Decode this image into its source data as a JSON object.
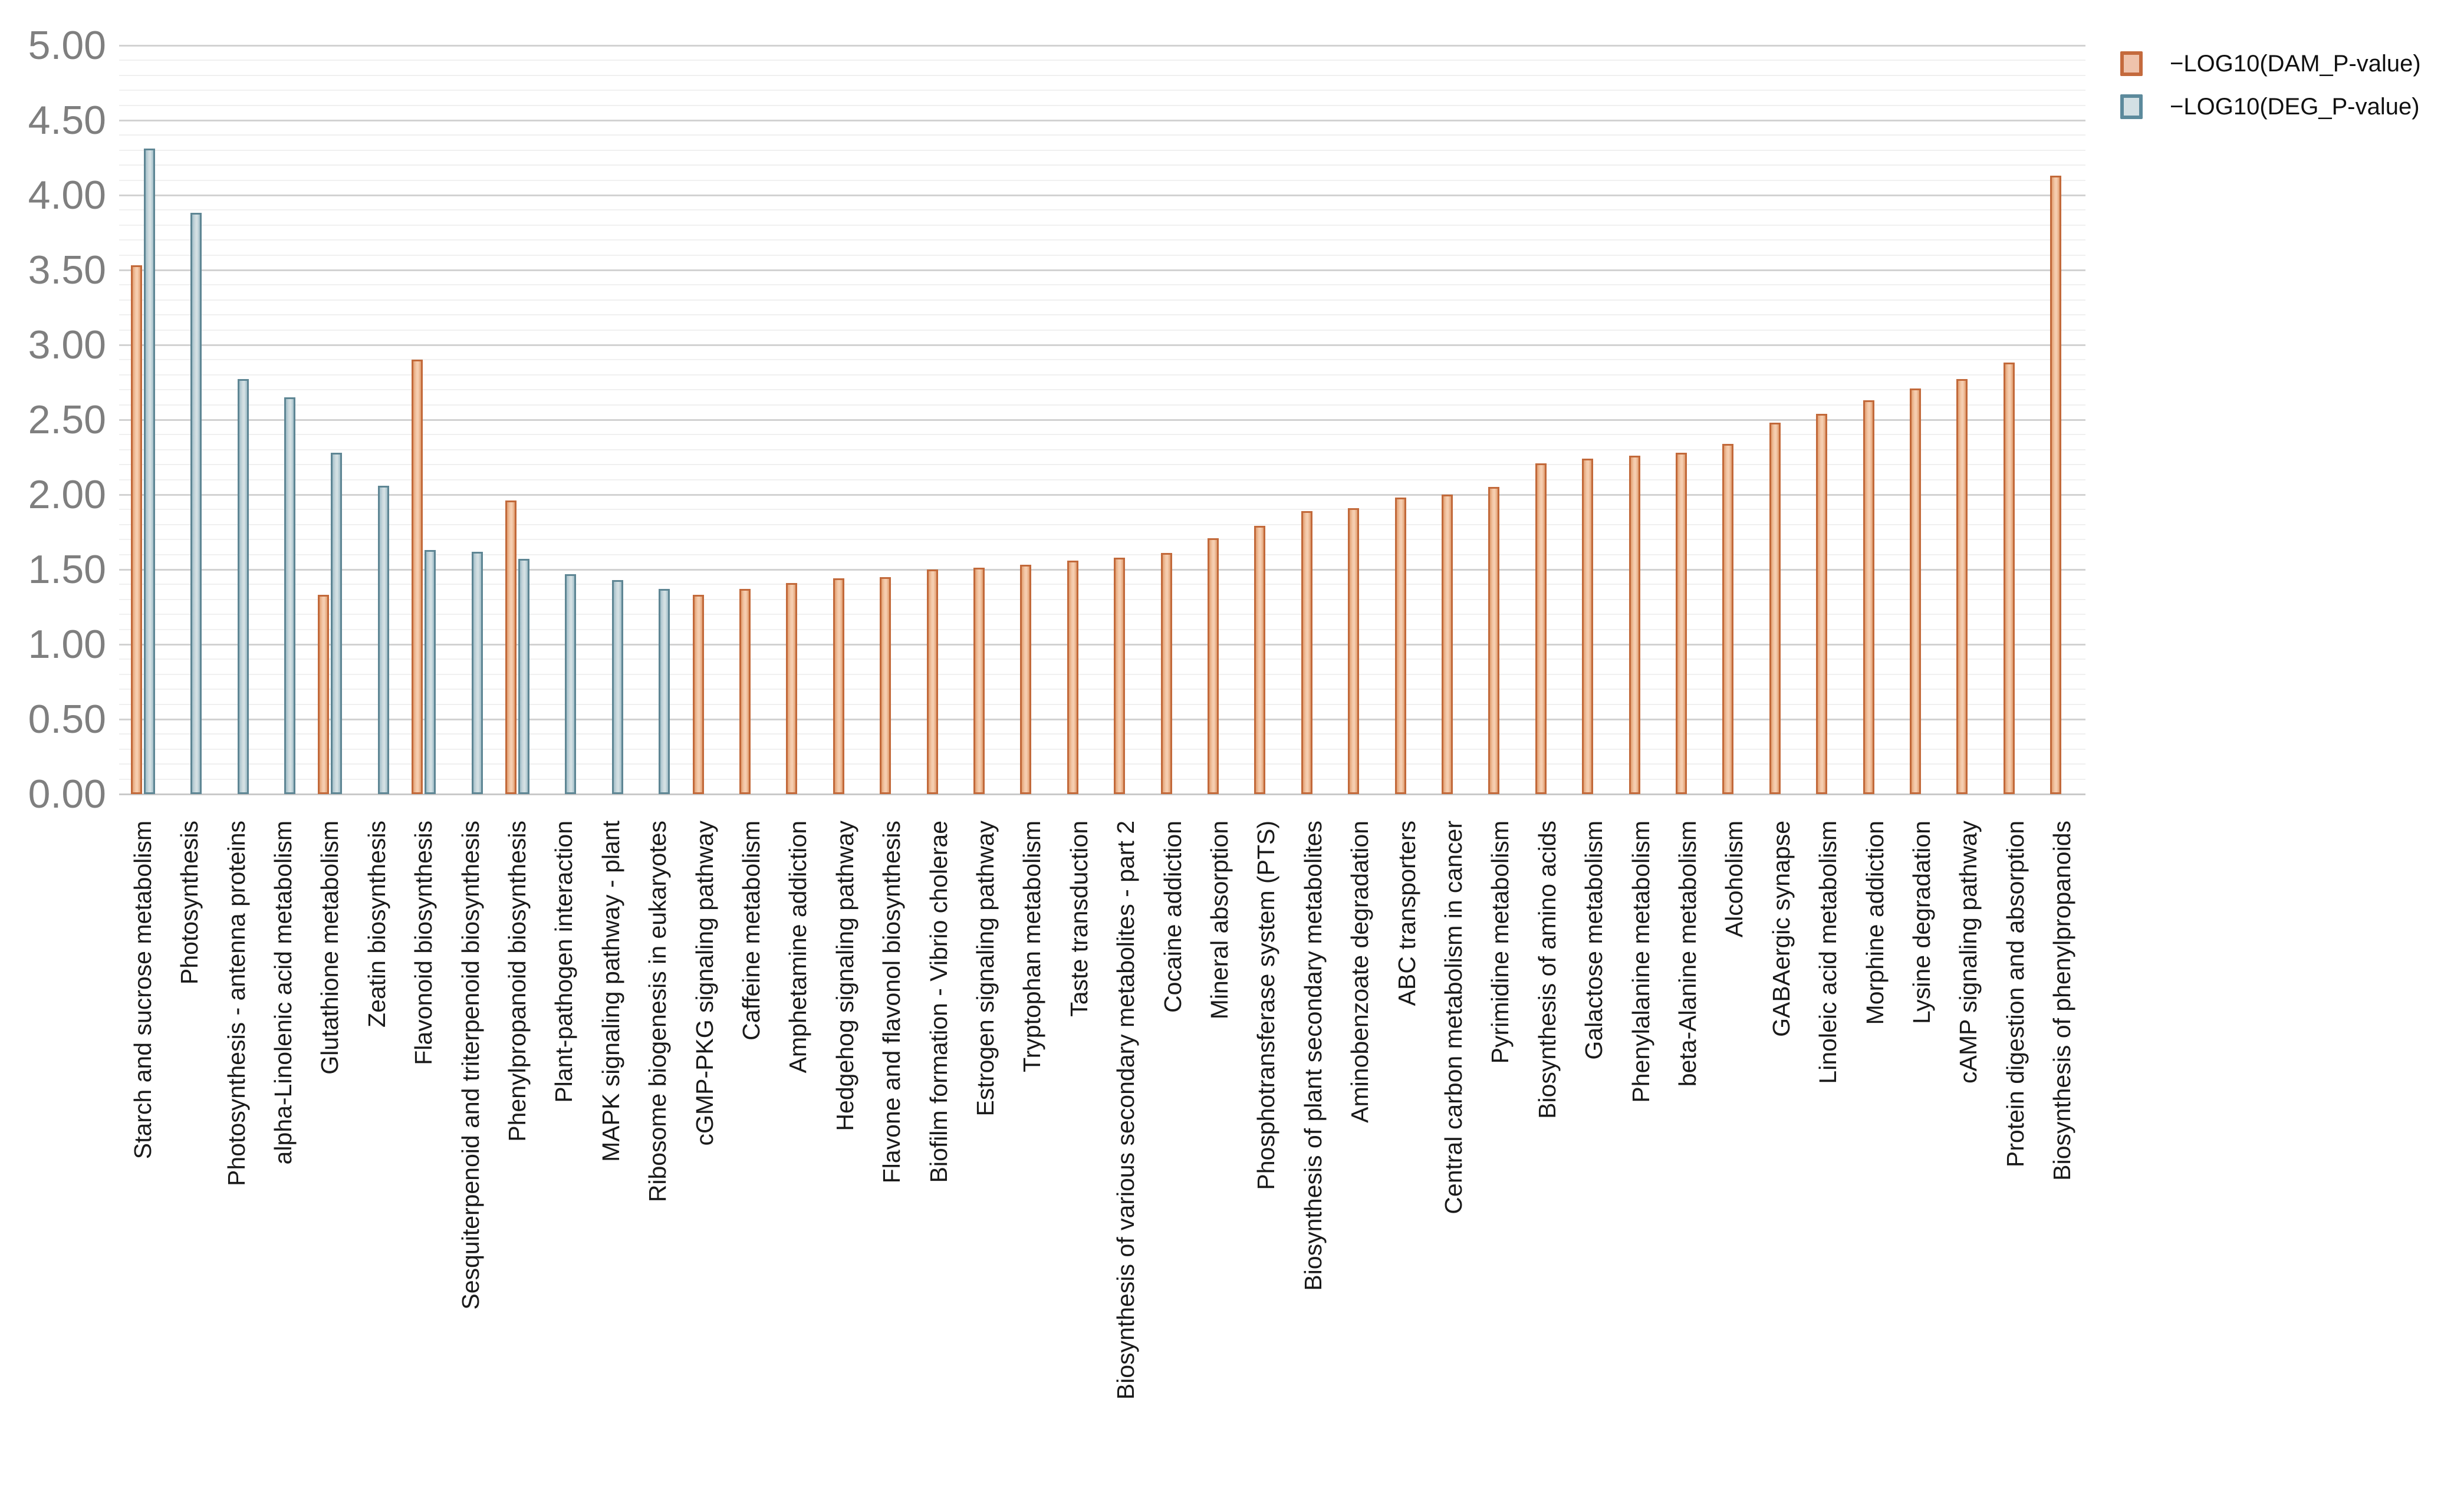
{
  "chart_data": {
    "type": "bar",
    "title": "",
    "xlabel": "",
    "ylabel": "",
    "grid": "on",
    "legend_position": "top-right",
    "categories": [
      "Starch and sucrose metabolism",
      "Photosynthesis",
      "Photosynthesis - antenna proteins",
      "alpha-Linolenic acid metabolism",
      "Glutathione metabolism",
      "Zeatin biosynthesis",
      "Flavonoid biosynthesis",
      "Sesquiterpenoid and triterpenoid biosynthesis",
      "Phenylpropanoid biosynthesis",
      "Plant-pathogen interaction",
      "MAPK signaling pathway - plant",
      "Ribosome biogenesis in eukaryotes",
      "cGMP-PKG signaling pathway",
      "Caffeine metabolism",
      "Amphetamine addiction",
      "Hedgehog signaling pathway",
      "Flavone and flavonol biosynthesis",
      "Biofilm formation - Vibrio cholerae",
      "Estrogen signaling pathway",
      "Tryptophan metabolism",
      "Taste transduction",
      "Biosynthesis of various secondary metabolites - part 2",
      "Cocaine addiction",
      "Mineral absorption",
      "Phosphotransferase system (PTS)",
      "Biosynthesis of plant secondary metabolites",
      "Aminobenzoate degradation",
      "ABC transporters",
      "Central carbon metabolism in cancer",
      "Pyrimidine metabolism",
      "Biosynthesis of amino acids",
      "Galactose metabolism",
      "Phenylalanine metabolism",
      "beta-Alanine metabolism",
      "Alcoholism",
      "GABAergic synapse",
      "Linoleic acid metabolism",
      "Morphine addiction",
      "Lysine degradation",
      "cAMP signaling pathway",
      "Protein digestion and absorption",
      "Biosynthesis of phenylpropanoids"
    ],
    "series": [
      {
        "name": "−LOG10(DAM_P-value)",
        "fill": "#F2C5A6",
        "border": "#C2693A",
        "values": [
          3.53,
          null,
          null,
          null,
          1.33,
          null,
          2.9,
          null,
          1.96,
          null,
          null,
          null,
          1.33,
          1.37,
          1.41,
          1.44,
          1.45,
          1.5,
          1.51,
          1.53,
          1.56,
          1.58,
          1.61,
          1.71,
          1.79,
          1.89,
          1.91,
          1.98,
          2.0,
          2.05,
          2.21,
          2.24,
          2.26,
          2.28,
          2.34,
          2.48,
          2.54,
          2.63,
          2.71,
          2.77,
          2.88,
          4.13
        ]
      },
      {
        "name": "−LOG10(DEG_P-value)",
        "fill": "#CCDADE",
        "border": "#5E8694",
        "values": [
          4.31,
          3.88,
          2.77,
          2.65,
          2.28,
          2.06,
          1.63,
          1.62,
          1.57,
          1.47,
          1.43,
          1.37,
          null,
          null,
          null,
          null,
          null,
          null,
          null,
          null,
          null,
          null,
          null,
          null,
          null,
          null,
          null,
          null,
          null,
          null,
          null,
          null,
          null,
          null,
          null,
          null,
          null,
          null,
          null,
          null,
          null,
          null
        ]
      }
    ],
    "y_axis": {
      "min": 0,
      "max": 5,
      "major_step": 0.5,
      "minor_step": 0.1,
      "tick_labels": [
        "0.00",
        "0.50",
        "1.00",
        "1.50",
        "2.00",
        "2.50",
        "3.00",
        "3.50",
        "4.00",
        "4.50",
        "5.00"
      ]
    }
  },
  "legend": {
    "items": [
      {
        "label": "−LOG10(DAM_P-value)",
        "series": "DAM",
        "fill": "#EFC3AC",
        "border": "#C46A3D"
      },
      {
        "label": "−LOG10(DEG_P-value)",
        "series": "DEG",
        "fill": "#D3E0E4",
        "border": "#5C8A9C"
      }
    ]
  },
  "colors": {
    "dam_fill": "#F2C5A6",
    "dam_border": "#C2693A",
    "deg_fill": "#CCDADE",
    "deg_border": "#5E8694",
    "gridline_minor": "#F0F0F0",
    "gridline_major": "#D2D2D2",
    "y_label_text": "#7F7F7F",
    "x_label_text": "#1A1A1A"
  }
}
